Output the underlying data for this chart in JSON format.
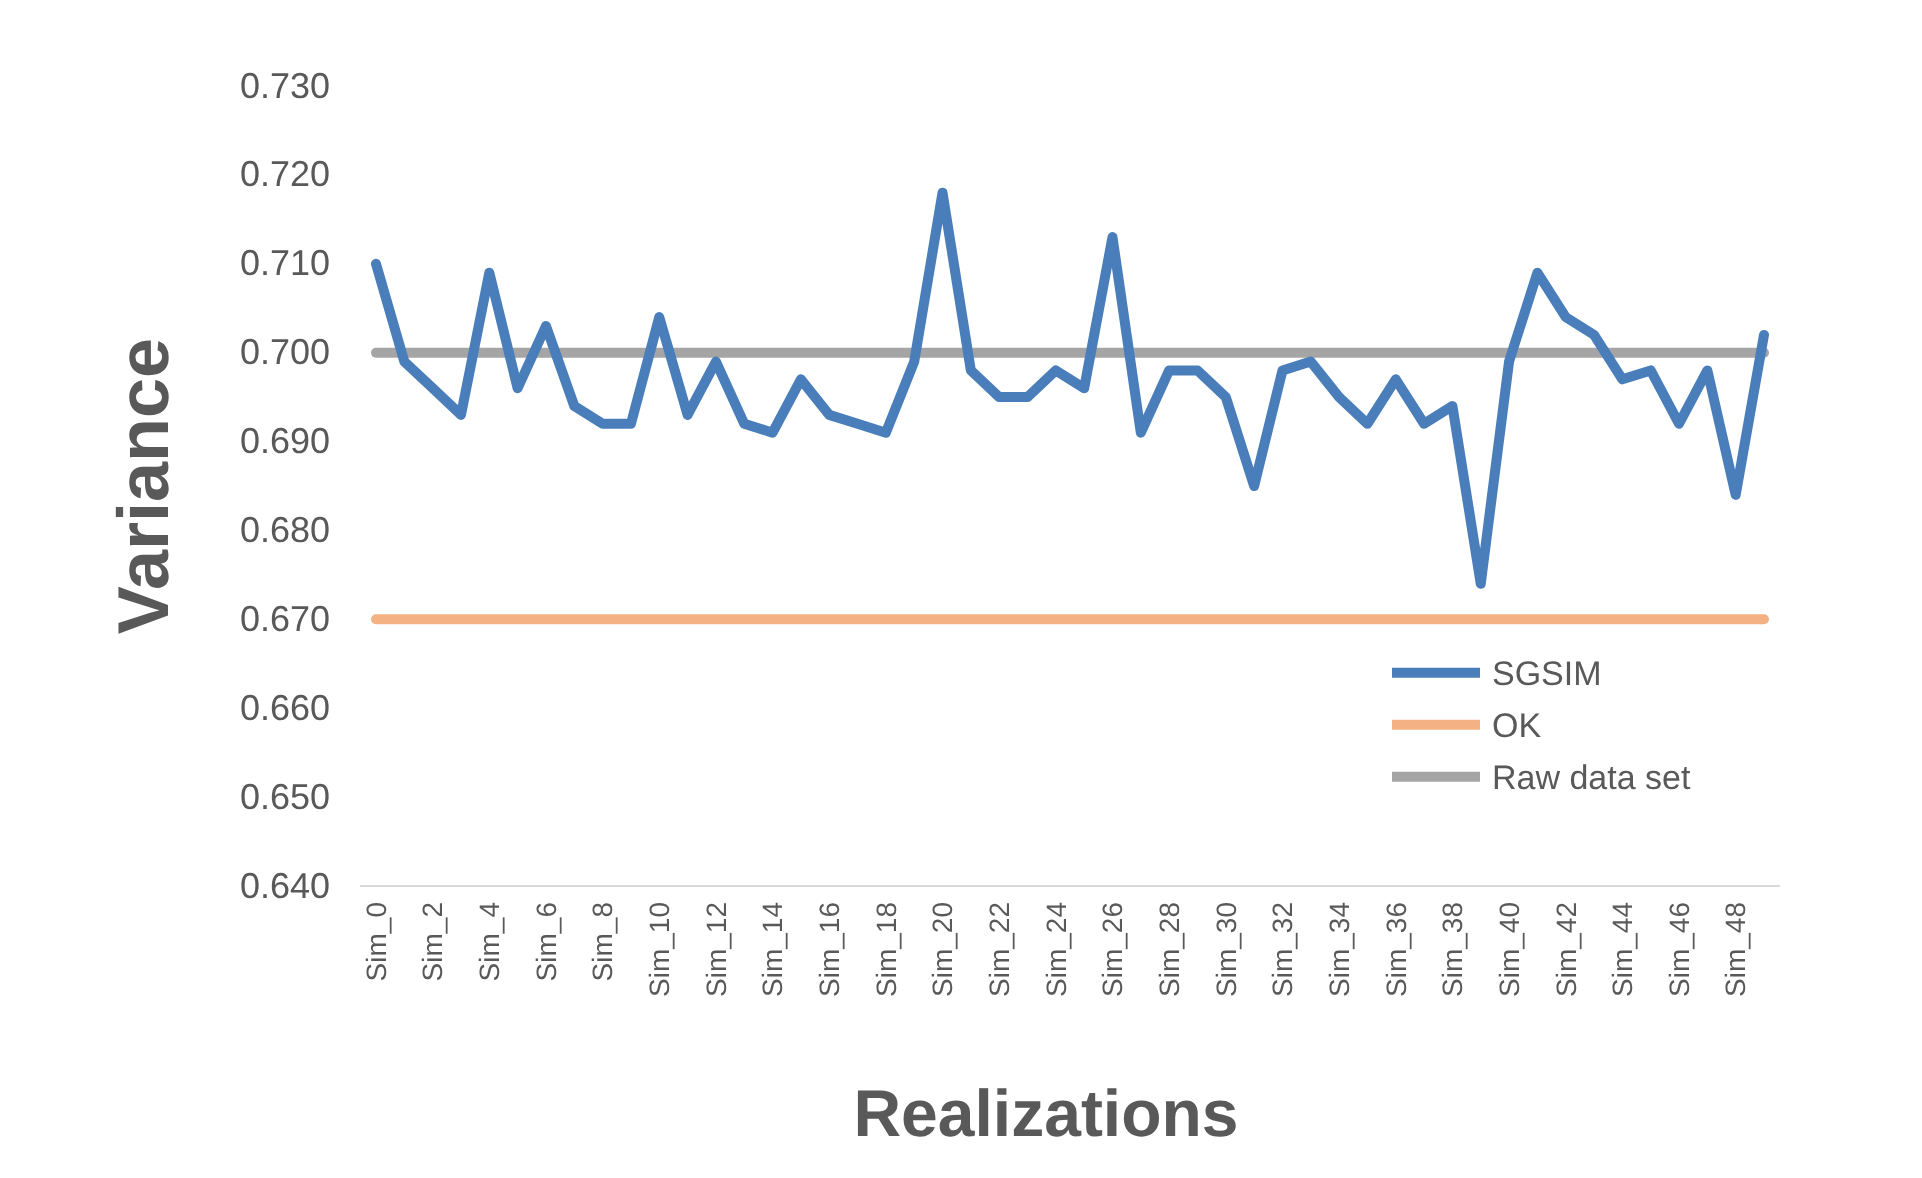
{
  "chart_data": {
    "type": "line",
    "xlabel": "Realizations",
    "ylabel": "Variance",
    "categories": [
      "Sim_0",
      null,
      "Sim_2",
      null,
      "Sim_4",
      null,
      "Sim_6",
      null,
      "Sim_8",
      null,
      "Sim_10",
      null,
      "Sim_12",
      null,
      "Sim_14",
      null,
      "Sim_16",
      null,
      "Sim_18",
      null,
      "Sim_20",
      null,
      "Sim_22",
      null,
      "Sim_24",
      null,
      "Sim_26",
      null,
      "Sim_28",
      null,
      "Sim_30",
      null,
      "Sim_32",
      null,
      "Sim_34",
      null,
      "Sim_36",
      null,
      "Sim_38",
      null,
      "Sim_40",
      null,
      "Sim_42",
      null,
      "Sim_44",
      null,
      "Sim_46",
      null,
      "Sim_48",
      null
    ],
    "series": [
      {
        "name": "SGSIM",
        "color": "#4a7ebb",
        "values": [
          0.71,
          0.699,
          0.696,
          0.693,
          0.709,
          0.696,
          0.703,
          0.694,
          0.692,
          0.692,
          0.704,
          0.693,
          0.699,
          0.692,
          0.691,
          0.697,
          0.693,
          0.692,
          0.691,
          0.699,
          0.718,
          0.698,
          0.695,
          0.695,
          0.698,
          0.696,
          0.713,
          0.691,
          0.698,
          0.698,
          0.695,
          0.685,
          0.698,
          0.699,
          0.695,
          0.692,
          0.697,
          0.692,
          0.694,
          0.674,
          0.699,
          0.709,
          0.704,
          0.702,
          0.697,
          0.698,
          0.692,
          0.698,
          0.684,
          0.702
        ]
      },
      {
        "name": "OK",
        "color": "#f4b183",
        "values": [
          0.67,
          0.67,
          0.67,
          0.67,
          0.67,
          0.67,
          0.67,
          0.67,
          0.67,
          0.67,
          0.67,
          0.67,
          0.67,
          0.67,
          0.67,
          0.67,
          0.67,
          0.67,
          0.67,
          0.67,
          0.67,
          0.67,
          0.67,
          0.67,
          0.67,
          0.67,
          0.67,
          0.67,
          0.67,
          0.67,
          0.67,
          0.67,
          0.67,
          0.67,
          0.67,
          0.67,
          0.67,
          0.67,
          0.67,
          0.67,
          0.67,
          0.67,
          0.67,
          0.67,
          0.67,
          0.67,
          0.67,
          0.67,
          0.67,
          0.67
        ]
      },
      {
        "name": "Raw data set",
        "color": "#a5a5a5",
        "values": [
          0.7,
          0.7,
          0.7,
          0.7,
          0.7,
          0.7,
          0.7,
          0.7,
          0.7,
          0.7,
          0.7,
          0.7,
          0.7,
          0.7,
          0.7,
          0.7,
          0.7,
          0.7,
          0.7,
          0.7,
          0.7,
          0.7,
          0.7,
          0.7,
          0.7,
          0.7,
          0.7,
          0.7,
          0.7,
          0.7,
          0.7,
          0.7,
          0.7,
          0.7,
          0.7,
          0.7,
          0.7,
          0.7,
          0.7,
          0.7,
          0.7,
          0.7,
          0.7,
          0.7,
          0.7,
          0.7,
          0.7,
          0.7,
          0.7,
          0.7
        ]
      }
    ],
    "ylim": [
      0.64,
      0.73
    ],
    "yticks": [
      {
        "value": 0.64,
        "label": "0.640"
      },
      {
        "value": 0.65,
        "label": "0.650"
      },
      {
        "value": 0.66,
        "label": "0.660"
      },
      {
        "value": 0.67,
        "label": "0.670"
      },
      {
        "value": 0.68,
        "label": "0.680"
      },
      {
        "value": 0.69,
        "label": "0.690"
      },
      {
        "value": 0.7,
        "label": "0.700"
      },
      {
        "value": 0.71,
        "label": "0.710"
      },
      {
        "value": 0.72,
        "label": "0.720"
      },
      {
        "value": 0.73,
        "label": "0.730"
      }
    ],
    "legend": "right",
    "grid": false,
    "marker": "none",
    "line_style": "solid"
  }
}
